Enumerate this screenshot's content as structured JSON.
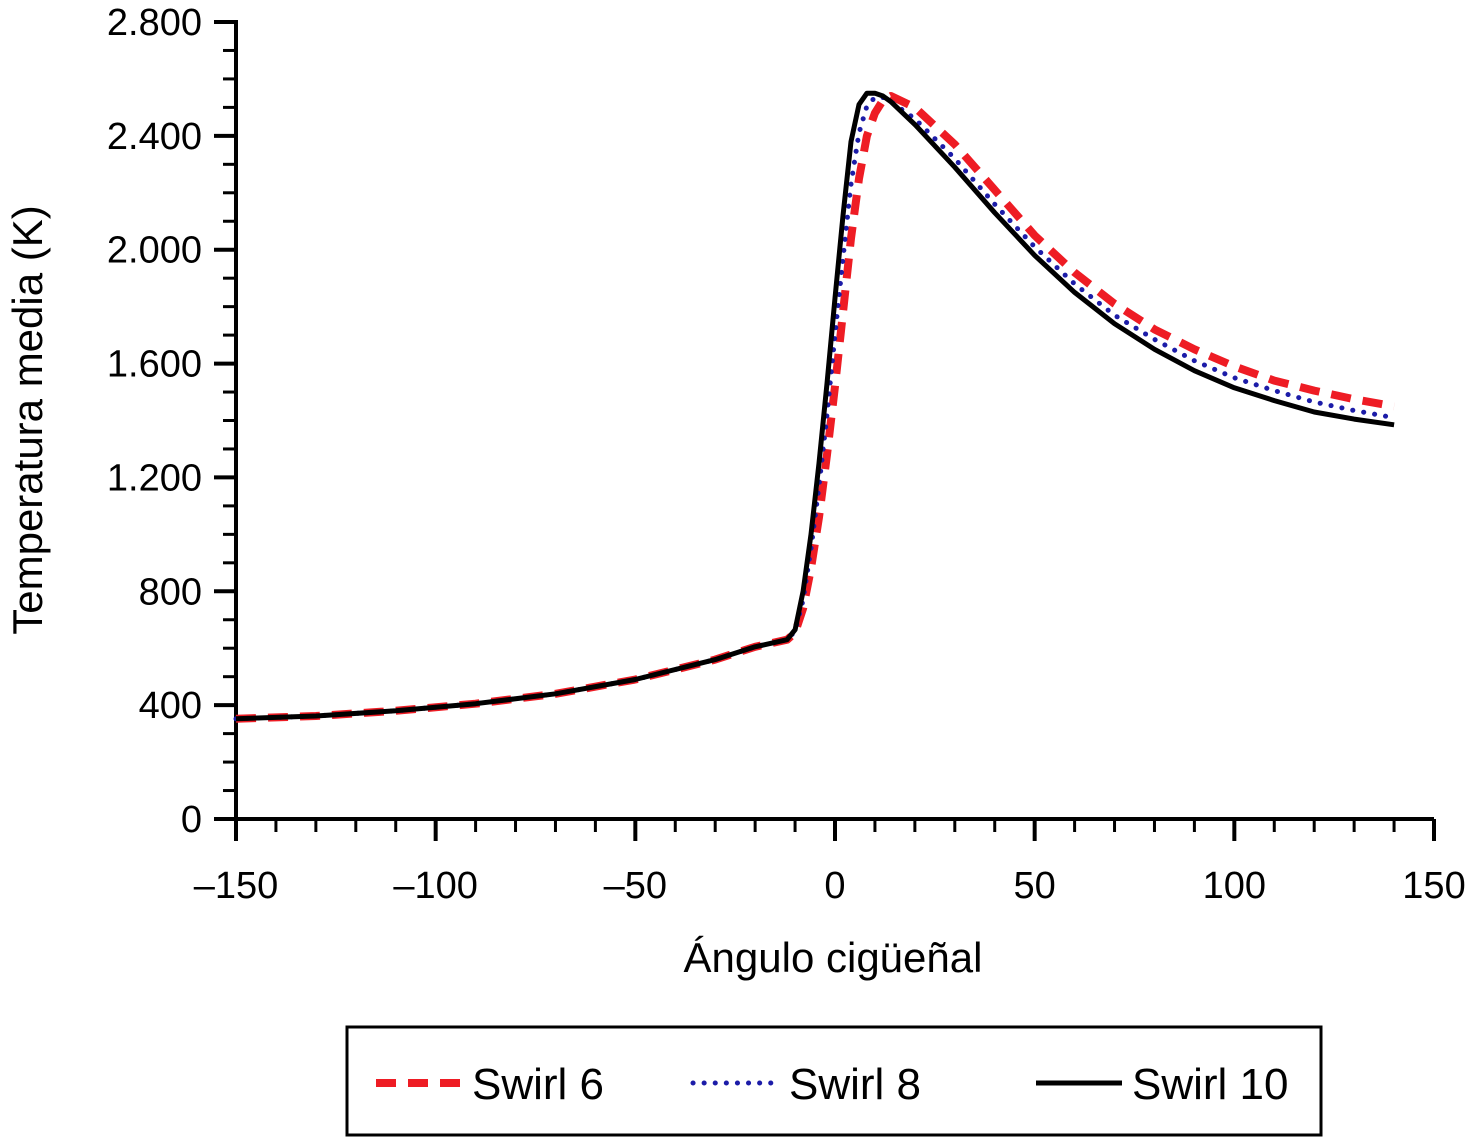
{
  "chart_data": {
    "type": "line",
    "xlabel": "Ángulo cigüeñal",
    "ylabel": "Temperatura media (K)",
    "xlim": [
      -150,
      150
    ],
    "ylim": [
      0,
      2800
    ],
    "x_ticks": [
      -150,
      -100,
      -50,
      0,
      50,
      100,
      150
    ],
    "x_tick_labels": [
      "–150",
      "–100",
      "–50",
      "0",
      "50",
      "100",
      "150"
    ],
    "y_ticks": [
      0,
      400,
      800,
      1200,
      1600,
      2000,
      2400,
      2800
    ],
    "y_tick_labels": [
      "0",
      "400",
      "800",
      "1.200",
      "1.600",
      "2.000",
      "2.400",
      "2.800"
    ],
    "grid": false,
    "legend_position": "bottom",
    "series": [
      {
        "name": "Swirl 6",
        "color": "#ee1c24",
        "style": "dashed",
        "x": [
          -150,
          -130,
          -110,
          -90,
          -70,
          -50,
          -30,
          -20,
          -12,
          -10,
          -8,
          -6,
          -4,
          -2,
          0,
          2,
          4,
          6,
          8,
          10,
          12,
          14,
          20,
          30,
          40,
          50,
          60,
          70,
          80,
          90,
          100,
          110,
          120,
          130,
          140
        ],
        "y": [
          352,
          362,
          380,
          405,
          440,
          490,
          560,
          605,
          630,
          655,
          740,
          880,
          1060,
          1280,
          1520,
          1780,
          2040,
          2250,
          2400,
          2480,
          2525,
          2540,
          2500,
          2370,
          2210,
          2050,
          1920,
          1810,
          1720,
          1650,
          1590,
          1540,
          1505,
          1475,
          1450
        ]
      },
      {
        "name": "Swirl 8",
        "color": "#1c1ca8",
        "style": "dotted",
        "x": [
          -150,
          -130,
          -110,
          -90,
          -70,
          -50,
          -30,
          -20,
          -12,
          -10,
          -8,
          -6,
          -4,
          -2,
          0,
          2,
          4,
          6,
          8,
          10,
          12,
          14,
          20,
          30,
          40,
          50,
          60,
          70,
          80,
          90,
          100,
          110,
          120,
          130,
          140
        ],
        "y": [
          352,
          362,
          380,
          405,
          440,
          490,
          560,
          605,
          630,
          660,
          770,
          950,
          1170,
          1420,
          1700,
          1970,
          2230,
          2410,
          2505,
          2535,
          2535,
          2520,
          2460,
          2320,
          2160,
          2010,
          1880,
          1770,
          1685,
          1610,
          1550,
          1505,
          1465,
          1435,
          1410
        ]
      },
      {
        "name": "Swirl 10",
        "color": "#000000",
        "style": "solid",
        "x": [
          -150,
          -130,
          -110,
          -90,
          -70,
          -50,
          -30,
          -20,
          -12,
          -10,
          -8,
          -6,
          -4,
          -2,
          0,
          2,
          4,
          6,
          8,
          10,
          12,
          14,
          20,
          30,
          40,
          50,
          60,
          70,
          80,
          90,
          100,
          110,
          120,
          130,
          140
        ],
        "y": [
          352,
          362,
          380,
          405,
          440,
          490,
          560,
          605,
          630,
          665,
          800,
          1000,
          1250,
          1530,
          1830,
          2120,
          2380,
          2510,
          2550,
          2550,
          2540,
          2520,
          2440,
          2290,
          2130,
          1980,
          1850,
          1740,
          1650,
          1575,
          1515,
          1470,
          1430,
          1405,
          1385
        ]
      }
    ]
  }
}
